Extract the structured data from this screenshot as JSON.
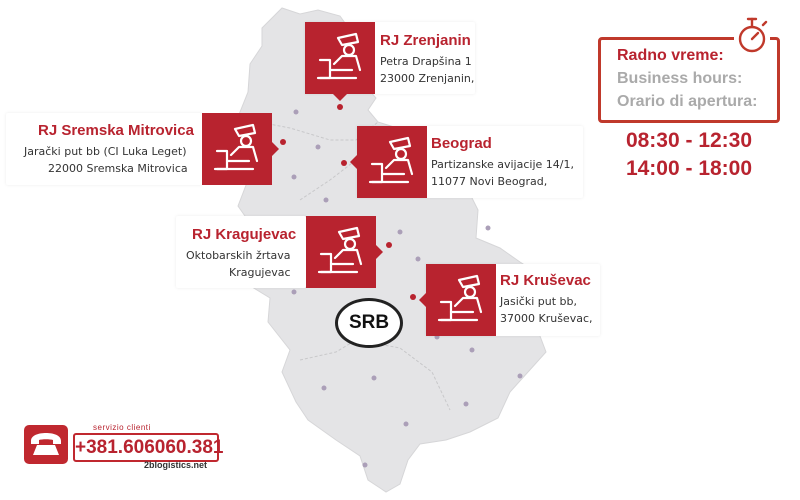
{
  "offices": [
    {
      "name": "RJ Zrenjanin",
      "lines": [
        "Petra Drapšina 1",
        "23000 Zrenjanin,"
      ]
    },
    {
      "name": "RJ Sremska Mitrovica",
      "lines": [
        "Jarački put bb (CI Luka Leget)",
        "22000 Sremska Mitrovica"
      ]
    },
    {
      "name": "Beograd",
      "lines": [
        "Partizanske avijacije 14/1,",
        "11077 Novi Beograd,"
      ]
    },
    {
      "name": "RJ Kragujevac",
      "lines": [
        "Oktobarskih žrtava",
        "Kragujevac"
      ]
    },
    {
      "name": "RJ Kruševac",
      "lines": [
        "Jasički put bb,",
        "37000 Kruševac,"
      ]
    }
  ],
  "hours": {
    "label_sr": "Radno vreme:",
    "label_en": "Business hours:",
    "label_it": "Orario di apertura:",
    "morning": "08:30 - 12:30",
    "afternoon": "14:00 - 18:00"
  },
  "country_badge": "SRB",
  "contact": {
    "service_label": "servizio clienti",
    "phone": "+381.606060.381",
    "website": "2blogistics.net"
  },
  "colors": {
    "accent": "#b8232f",
    "map_fill": "#e4e4e6",
    "muted_text": "#aaaaaa"
  },
  "icons": [
    "officer-desk-icon",
    "stopwatch-icon",
    "telephone-icon"
  ]
}
